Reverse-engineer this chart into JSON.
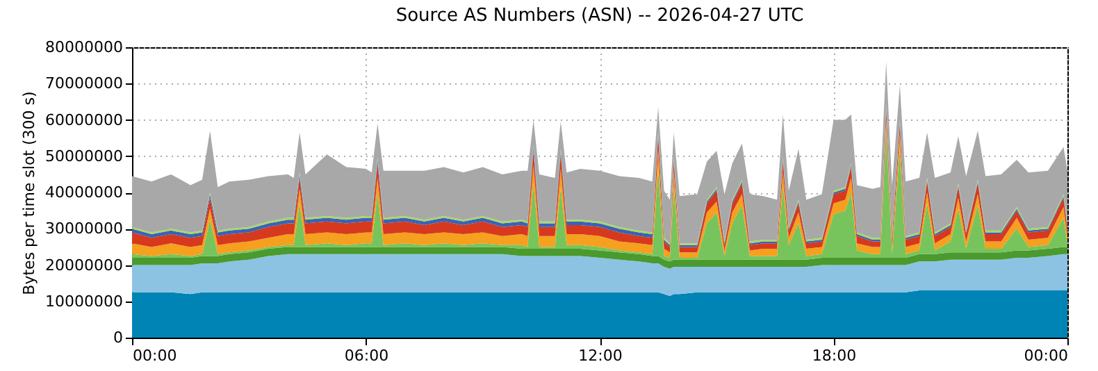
{
  "chart_data": {
    "type": "area",
    "stacked": true,
    "title": "Source AS Numbers (ASN) -- 2026-04-27 UTC",
    "ylabel": "Bytes per time slot (300 s)",
    "x": [
      0,
      0.5,
      1,
      1.5,
      1.8,
      2.0,
      2.2,
      2.5,
      3,
      3.5,
      4,
      4.15,
      4.3,
      4.45,
      5,
      5.5,
      6,
      6.15,
      6.3,
      6.45,
      7,
      7.5,
      8,
      8.5,
      9,
      9.5,
      10,
      10.15,
      10.3,
      10.45,
      10.85,
      11.0,
      11.15,
      11.5,
      12,
      12.5,
      13,
      13.35,
      13.5,
      13.65,
      13.8,
      13.9,
      14.05,
      14.5,
      14.75,
      15.0,
      15.2,
      15.4,
      15.65,
      15.85,
      16.2,
      16.55,
      16.7,
      16.85,
      17.1,
      17.3,
      17.7,
      18.0,
      18.3,
      18.45,
      18.6,
      19.0,
      19.2,
      19.35,
      19.5,
      19.7,
      19.85,
      20.2,
      20.4,
      20.6,
      21.0,
      21.2,
      21.4,
      21.7,
      21.9,
      22.3,
      22.7,
      23.0,
      23.5,
      23.9,
      24
    ],
    "xlim": [
      0,
      24
    ],
    "xticks": [
      {
        "value": 0,
        "label": "00:00"
      },
      {
        "value": 6,
        "label": "06:00"
      },
      {
        "value": 12,
        "label": "12:00"
      },
      {
        "value": 18,
        "label": "18:00"
      },
      {
        "value": 24,
        "label": "00:00"
      }
    ],
    "ylim": [
      0,
      80000000
    ],
    "yticks": [
      0,
      10000000,
      20000000,
      30000000,
      40000000,
      50000000,
      60000000,
      70000000,
      80000000
    ],
    "grid": true,
    "legend": false,
    "series": [
      {
        "color": "#0083b5",
        "values": [
          12500000.0,
          12500000.0,
          12500000.0,
          12000000.0,
          12500000.0,
          12500000.0,
          12500000.0,
          12500000.0,
          12500000.0,
          12500000.0,
          12500000.0,
          12500000.0,
          12500000.0,
          12500000.0,
          12500000.0,
          12500000.0,
          12500000.0,
          12500000.0,
          12500000.0,
          12500000.0,
          12500000.0,
          12500000.0,
          12500000.0,
          12500000.0,
          12500000.0,
          12500000.0,
          12500000.0,
          12500000.0,
          12500000.0,
          12500000.0,
          12500000.0,
          12500000.0,
          12500000.0,
          12500000.0,
          12500000.0,
          12500000.0,
          12500000.0,
          12500000.0,
          12500000.0,
          12000000.0,
          11500000.0,
          12000000.0,
          12000000.0,
          12500000.0,
          12500000.0,
          12500000.0,
          12500000.0,
          12500000.0,
          12500000.0,
          12500000.0,
          12500000.0,
          12500000.0,
          12500000.0,
          12500000.0,
          12500000.0,
          12500000.0,
          12500000.0,
          12500000.0,
          12500000.0,
          12500000.0,
          12500000.0,
          12500000.0,
          12500000.0,
          12500000.0,
          12500000.0,
          12500000.0,
          12500000.0,
          13000000.0,
          13000000.0,
          13000000.0,
          13000000.0,
          13000000.0,
          13000000.0,
          13000000.0,
          13000000.0,
          13000000.0,
          13000000.0,
          13000000.0,
          13000000.0,
          13000000.0,
          13000000.0
        ]
      },
      {
        "color": "#8cc3e3",
        "values": [
          7500000.0,
          7500000.0,
          7500000.0,
          8000000.0,
          8000000.0,
          8000000.0,
          8000000.0,
          8500000.0,
          9000000.0,
          10000000.0,
          10500000.0,
          10500000.0,
          10500000.0,
          10500000.0,
          10500000.0,
          10500000.0,
          10500000.0,
          10500000.0,
          10500000.0,
          10500000.0,
          10500000.0,
          10500000.0,
          10500000.0,
          10500000.0,
          10500000.0,
          10500000.0,
          10000000.0,
          10000000.0,
          10000000.0,
          10000000.0,
          10000000.0,
          10000000.0,
          10000000.0,
          10000000.0,
          9500000.0,
          9000000.0,
          8500000.0,
          8000000.0,
          8000000.0,
          7500000.0,
          7500000.0,
          7500000.0,
          7500000.0,
          7000000.0,
          7000000.0,
          7000000.0,
          7000000.0,
          7000000.0,
          7000000.0,
          7000000.0,
          7000000.0,
          7000000.0,
          7000000.0,
          7000000.0,
          7000000.0,
          7000000.0,
          7500000.0,
          7500000.0,
          7500000.0,
          7500000.0,
          7500000.0,
          7500000.0,
          7500000.0,
          7500000.0,
          7500000.0,
          7500000.0,
          7500000.0,
          8000000.0,
          8000000.0,
          8000000.0,
          8500000.0,
          8500000.0,
          8500000.0,
          8500000.0,
          8500000.0,
          8500000.0,
          9000000.0,
          9000000.0,
          9500000.0,
          10000000.0,
          10000000.0
        ]
      },
      {
        "color": "#4a9a2e",
        "values": [
          2000000.0,
          2000000.0,
          2000000.0,
          2000000.0,
          2000000.0,
          2000000.0,
          2000000.0,
          2000000.0,
          2000000.0,
          2000000.0,
          2000000.0,
          2000000.0,
          2000000.0,
          2000000.0,
          2000000.0,
          2000000.0,
          2000000.0,
          2000000.0,
          2000000.0,
          2000000.0,
          2000000.0,
          2000000.0,
          2000000.0,
          2000000.0,
          2000000.0,
          2000000.0,
          2000000.0,
          2000000.0,
          2000000.0,
          2000000.0,
          2000000.0,
          2000000.0,
          2000000.0,
          2000000.0,
          2000000.0,
          2000000.0,
          2000000.0,
          2000000.0,
          2000000.0,
          2000000.0,
          2000000.0,
          2000000.0,
          2000000.0,
          2000000.0,
          2000000.0,
          2000000.0,
          2000000.0,
          2000000.0,
          2000000.0,
          2000000.0,
          2000000.0,
          2000000.0,
          2000000.0,
          2000000.0,
          2000000.0,
          2000000.0,
          2000000.0,
          2000000.0,
          2000000.0,
          2000000.0,
          2000000.0,
          2000000.0,
          2000000.0,
          2000000.0,
          2000000.0,
          2000000.0,
          2000000.0,
          2000000.0,
          2000000.0,
          2000000.0,
          2000000.0,
          2000000.0,
          2000000.0,
          2000000.0,
          2000000.0,
          2000000.0,
          2000000.0,
          2000000.0,
          2000000.0,
          2000000.0,
          2000000.0
        ]
      },
      {
        "color": "#77c45c",
        "values": [
          1000000.0,
          500000.0,
          1000000.0,
          500000.0,
          500000.0,
          10000000.0,
          500000.0,
          500000.0,
          500000.0,
          500000.0,
          500000.0,
          500000.0,
          12000000.0,
          500000.0,
          1000000.0,
          500000.0,
          1000000.0,
          1000000.0,
          15000000.0,
          500000.0,
          1000000.0,
          500000.0,
          1000000.0,
          500000.0,
          1000000.0,
          500000.0,
          1000000.0,
          500000.0,
          18000000.0,
          500000.0,
          500000.0,
          17000000.0,
          1000000.0,
          1000000.0,
          1000000.0,
          500000.0,
          500000.0,
          500000.0,
          24000000.0,
          1000000.0,
          1000000.0,
          20000000.0,
          500000.0,
          500000.0,
          10000000.0,
          13000000.0,
          1000000.0,
          10000000.0,
          15000000.0,
          1000000.0,
          1000000.0,
          1000000.0,
          20000000.0,
          4000000.0,
          10000000.0,
          1000000.0,
          1000000.0,
          12000000.0,
          13000000.0,
          18000000.0,
          2000000.0,
          1000000.0,
          1000000.0,
          35000000.0,
          1000000.0,
          30000000.0,
          1000000.0,
          1000000.0,
          14000000.0,
          1000000.0,
          3000000.0,
          12000000.0,
          1000000.0,
          13000000.0,
          1000000.0,
          1000000.0,
          6000000.0,
          1000000.0,
          1000000.0,
          8000000.0,
          1000000.0
        ]
      },
      {
        "color": "#f5a01e",
        "values": [
          3000000.0,
          2500000.0,
          3000000.0,
          2500000.0,
          2500000.0,
          3000000.0,
          2500000.0,
          2500000.0,
          2500000.0,
          2500000.0,
          3000000.0,
          3000000.0,
          4000000.0,
          3000000.0,
          3000000.0,
          3000000.0,
          3000000.0,
          3000000.0,
          4000000.0,
          3000000.0,
          3000000.0,
          3000000.0,
          3000000.0,
          3000000.0,
          3000000.0,
          2500000.0,
          3000000.0,
          3000000.0,
          5000000.0,
          3000000.0,
          3000000.0,
          5000000.0,
          3000000.0,
          3000000.0,
          3000000.0,
          2500000.0,
          2500000.0,
          2500000.0,
          5000000.0,
          2000000.0,
          1500000.0,
          4000000.0,
          1500000.0,
          1500000.0,
          3000000.0,
          3000000.0,
          1500000.0,
          3000000.0,
          3000000.0,
          1500000.0,
          2000000.0,
          2000000.0,
          4000000.0,
          2000000.0,
          3000000.0,
          2000000.0,
          2000000.0,
          3000000.0,
          3000000.0,
          4000000.0,
          2000000.0,
          2000000.0,
          2000000.0,
          3000000.0,
          2000000.0,
          4000000.0,
          2000000.0,
          2000000.0,
          3000000.0,
          2000000.0,
          2000000.0,
          3000000.0,
          2000000.0,
          3000000.0,
          2000000.0,
          2000000.0,
          3000000.0,
          2000000.0,
          2000000.0,
          3000000.0,
          2000000.0
        ]
      },
      {
        "color": "#d7391e",
        "values": [
          3000000.0,
          2500000.0,
          2500000.0,
          2500000.0,
          2500000.0,
          3000000.0,
          2500000.0,
          2500000.0,
          2500000.0,
          3000000.0,
          3000000.0,
          3000000.0,
          3000000.0,
          3000000.0,
          3000000.0,
          3000000.0,
          3000000.0,
          3000000.0,
          4000000.0,
          3000000.0,
          3000000.0,
          2500000.0,
          3000000.0,
          2500000.0,
          3000000.0,
          2500000.0,
          2500000.0,
          2500000.0,
          4000000.0,
          2500000.0,
          2500000.0,
          4000000.0,
          2500000.0,
          2500000.0,
          2500000.0,
          2500000.0,
          2000000.0,
          2000000.0,
          4000000.0,
          2000000.0,
          1500000.0,
          3000000.0,
          1500000.0,
          1500000.0,
          2500000.0,
          3000000.0,
          1500000.0,
          2500000.0,
          3000000.0,
          1500000.0,
          1500000.0,
          1500000.0,
          3000000.0,
          2000000.0,
          2500000.0,
          1500000.0,
          1500000.0,
          2500000.0,
          2500000.0,
          3000000.0,
          2000000.0,
          1500000.0,
          1500000.0,
          3000000.0,
          2000000.0,
          3000000.0,
          2000000.0,
          2000000.0,
          3000000.0,
          2000000.0,
          2000000.0,
          3000000.0,
          2000000.0,
          3000000.0,
          2000000.0,
          2000000.0,
          2000000.0,
          2000000.0,
          2000000.0,
          2500000.0,
          2000000.0
        ]
      },
      {
        "color": "#3a62b8",
        "values": [
          1000000.0,
          1000000.0,
          1000000.0,
          1000000.0,
          1000000.0,
          1000000.0,
          1000000.0,
          1000000.0,
          1000000.0,
          1000000.0,
          1000000.0,
          1000000.0,
          1000000.0,
          1000000.0,
          1000000.0,
          1000000.0,
          1000000.0,
          1000000.0,
          1000000.0,
          1000000.0,
          1000000.0,
          1000000.0,
          1000000.0,
          1000000.0,
          1000000.0,
          1000000.0,
          1000000.0,
          1000000.0,
          1000000.0,
          1000000.0,
          1000000.0,
          1000000.0,
          1000000.0,
          1000000.0,
          1000000.0,
          1000000.0,
          1000000.0,
          1000000.0,
          500000.0,
          500000.0,
          500000.0,
          500000.0,
          500000.0,
          500000.0,
          500000.0,
          500000.0,
          500000.0,
          500000.0,
          500000.0,
          500000.0,
          500000.0,
          500000.0,
          500000.0,
          500000.0,
          500000.0,
          500000.0,
          500000.0,
          500000.0,
          500000.0,
          500000.0,
          500000.0,
          500000.0,
          500000.0,
          500000.0,
          500000.0,
          500000.0,
          500000.0,
          500000.0,
          500000.0,
          500000.0,
          500000.0,
          500000.0,
          500000.0,
          500000.0,
          500000.0,
          500000.0,
          500000.0,
          500000.0,
          500000.0,
          500000.0,
          500000.0
        ]
      },
      {
        "color": "#a6d95e",
        "values": [
          500000.0,
          500000.0,
          500000.0,
          500000.0,
          500000.0,
          500000.0,
          500000.0,
          500000.0,
          500000.0,
          500000.0,
          500000.0,
          500000.0,
          500000.0,
          500000.0,
          500000.0,
          500000.0,
          500000.0,
          500000.0,
          500000.0,
          500000.0,
          500000.0,
          500000.0,
          500000.0,
          500000.0,
          500000.0,
          500000.0,
          500000.0,
          500000.0,
          500000.0,
          500000.0,
          500000.0,
          500000.0,
          500000.0,
          500000.0,
          500000.0,
          500000.0,
          500000.0,
          500000.0,
          500000.0,
          500000.0,
          500000.0,
          500000.0,
          500000.0,
          500000.0,
          500000.0,
          500000.0,
          500000.0,
          500000.0,
          500000.0,
          500000.0,
          500000.0,
          500000.0,
          500000.0,
          500000.0,
          500000.0,
          500000.0,
          500000.0,
          500000.0,
          500000.0,
          500000.0,
          500000.0,
          500000.0,
          500000.0,
          500000.0,
          500000.0,
          500000.0,
          500000.0,
          500000.0,
          500000.0,
          500000.0,
          500000.0,
          500000.0,
          500000.0,
          500000.0,
          500000.0,
          500000.0,
          500000.0,
          500000.0,
          500000.0,
          500000.0,
          500000.0
        ]
      },
      {
        "color": "#a8a8a8",
        "values": [
          14000000.0,
          14000000.0,
          15000000.0,
          13000000.0,
          14000000.0,
          17000000.0,
          12000000.0,
          13000000.0,
          13000000.0,
          12500000.0,
          12000000.0,
          11000000.0,
          11000000.0,
          12000000.0,
          17000000.0,
          14000000.0,
          13000000.0,
          12000000.0,
          9500000.0,
          13000000.0,
          12500000.0,
          13500000.0,
          13500000.0,
          13000000.0,
          13500000.0,
          13000000.0,
          13500000.0,
          14000000.0,
          7000000.0,
          13000000.0,
          12000000.0,
          7500000.0,
          13000000.0,
          14000000.0,
          14000000.0,
          14000000.0,
          14500000.0,
          14000000.0,
          7000000.0,
          13000000.0,
          12000000.0,
          7000000.0,
          13000000.0,
          13500000.0,
          10500000.0,
          10000000.0,
          13000000.0,
          10000000.0,
          10000000.0,
          13000000.0,
          12000000.0,
          11000000.0,
          12000000.0,
          10000000.0,
          14000000.0,
          11000000.0,
          12000000.0,
          19500000.0,
          18500000.0,
          13500000.0,
          13000000.0,
          13500000.0,
          14000000.0,
          12000000.0,
          14000000.0,
          9500000.0,
          15000000.0,
          15000000.0,
          12500000.0,
          15000000.0,
          14000000.0,
          13000000.0,
          15000000.0,
          13500000.0,
          15000000.0,
          15500000.0,
          13000000.0,
          15500000.0,
          15500000.0,
          13000000.0,
          15000000.0
        ]
      }
    ]
  }
}
